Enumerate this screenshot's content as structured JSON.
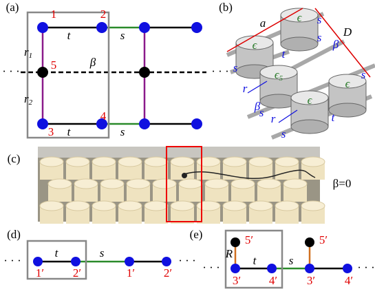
{
  "panels": {
    "a": {
      "label": "(a)",
      "nodes": [
        "1",
        "2",
        "5",
        "3",
        "4"
      ],
      "t": [
        "t",
        "t"
      ],
      "s": [
        "s",
        "s"
      ],
      "beta": "β",
      "r1": {
        "base": "r",
        "sub": "1"
      },
      "r2": {
        "base": "r",
        "sub": "2"
      },
      "ellipsis": [
        "· · ·",
        "· · ·"
      ]
    },
    "b": {
      "label": "(b)",
      "a": "a",
      "D": "D",
      "epsilon": [
        "ϵ",
        "ϵ",
        "ϵ",
        "ϵ"
      ],
      "epsilon5": {
        "base": "ϵ",
        "sub": "5"
      },
      "s": [
        "s",
        "s",
        "s",
        "s",
        "s",
        "s"
      ],
      "t": [
        "t",
        "t"
      ],
      "beta": [
        "β",
        "β"
      ],
      "r": [
        "r",
        "r"
      ]
    },
    "c": {
      "label": "(c)",
      "caption": "β=0"
    },
    "d": {
      "label": "(d)",
      "t": "t",
      "s": "s",
      "nodes": [
        "1′",
        "2′",
        "1′",
        "2′"
      ],
      "ellipsis": [
        "· · ·",
        "· · ·"
      ]
    },
    "e": {
      "label": "(e)",
      "R": "R",
      "top_nodes": [
        "5′",
        "5′"
      ],
      "t": "t",
      "s": "s",
      "nodes": [
        "3′",
        "4′",
        "3′",
        "4′"
      ],
      "ellipsis": [
        "· · ·",
        "· · ·"
      ]
    }
  }
}
